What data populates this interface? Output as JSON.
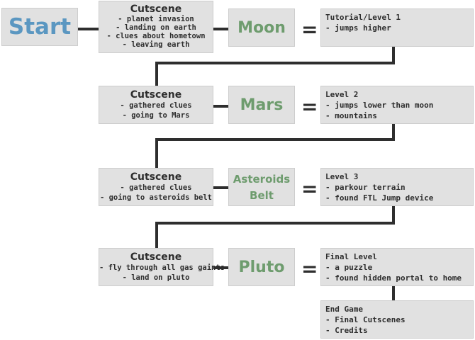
{
  "start": {
    "label": "Start"
  },
  "rows": [
    {
      "cutscene": {
        "title": "Cutscene",
        "lines": [
          "- planet invasion",
          "- landing on earth",
          "- clues about hometown",
          "- leaving earth"
        ]
      },
      "planet": {
        "name": "Moon"
      },
      "equals": "=",
      "level": {
        "lines": [
          "Tutorial/Level 1",
          "- jumps higher"
        ]
      }
    },
    {
      "cutscene": {
        "title": "Cutscene",
        "lines": [
          "- gathered clues",
          "- going to Mars"
        ]
      },
      "planet": {
        "name": "Mars"
      },
      "equals": "=",
      "level": {
        "lines": [
          "Level 2",
          "- jumps lower than moon",
          "- mountains"
        ]
      }
    },
    {
      "cutscene": {
        "title": "Cutscene",
        "lines": [
          "- gathered clues",
          "- going to asteroids belt"
        ]
      },
      "planet": {
        "name": "Asteroids Belt",
        "name_lines": [
          "Asteroids",
          "Belt"
        ]
      },
      "equals": "=",
      "level": {
        "lines": [
          "Level 3",
          "- parkour terrain",
          "- found FTL Jump device"
        ]
      }
    },
    {
      "cutscene": {
        "title": "Cutscene",
        "lines": [
          "- fly through all gas gaints",
          "- land on pluto"
        ]
      },
      "planet": {
        "name": "Pluto"
      },
      "equals": "=",
      "level": {
        "lines": [
          "Final Level",
          "- a puzzle",
          "- found hidden portal to home"
        ]
      }
    }
  ],
  "end": {
    "lines": [
      "End Game",
      "- Final Cutscenes",
      "- Credits"
    ]
  },
  "colors": {
    "box": "#e1e1e1",
    "start_text": "#5b97c1",
    "planet_text": "#6e9c6e",
    "ink": "#2e2e2e"
  }
}
